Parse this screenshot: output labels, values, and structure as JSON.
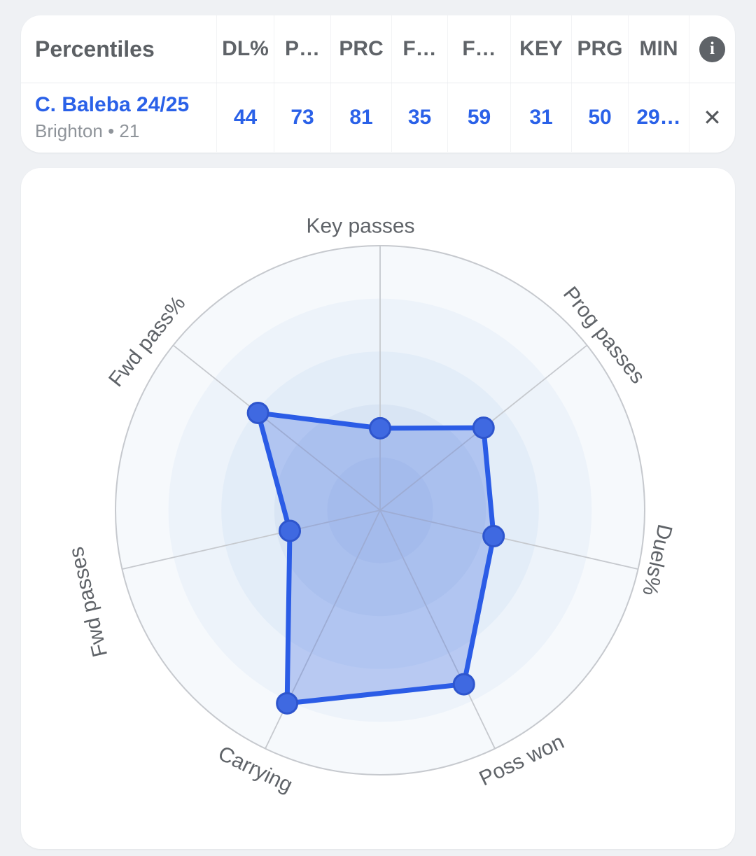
{
  "page": {
    "background": "#eff1f4"
  },
  "percentiles_card": {
    "title": "Percentiles",
    "columns": [
      "DL%",
      "P…",
      "PRC",
      "F…",
      "F…",
      "KEY",
      "PRG",
      "MIN"
    ],
    "info_icon_glyph": "i",
    "player_row": {
      "name": "C. Baleba 24/25",
      "club_age": "Brighton • 21",
      "values": [
        "44",
        "73",
        "81",
        "35",
        "59",
        "31",
        "50",
        "29…"
      ],
      "remove_icon_glyph": "✕"
    }
  },
  "chart_data": {
    "type": "radar",
    "title": "",
    "categories": [
      "Key passes",
      "Prog passes",
      "Duels%",
      "Poss won",
      "Carrying",
      "Fwd passes",
      "Fwd pass%"
    ],
    "values": [
      31,
      50,
      44,
      73,
      81,
      35,
      59
    ],
    "value_range": [
      0,
      100
    ],
    "grid_rings": 5,
    "grid_shape": "circle",
    "legend": "none",
    "series_color": "#2b5ce6",
    "marker_color": "#3f69e1",
    "marker_stroke": "#2e55cd",
    "fill_color": "rgba(63,105,225,0.30)",
    "ring_fills": [
      "#f6f9fc",
      "#edf3fa",
      "#e3edf8",
      "#d9e5f4",
      "#d0def1"
    ],
    "grid_line_color": "#c6c9ce",
    "label_color": "#5f6368"
  }
}
